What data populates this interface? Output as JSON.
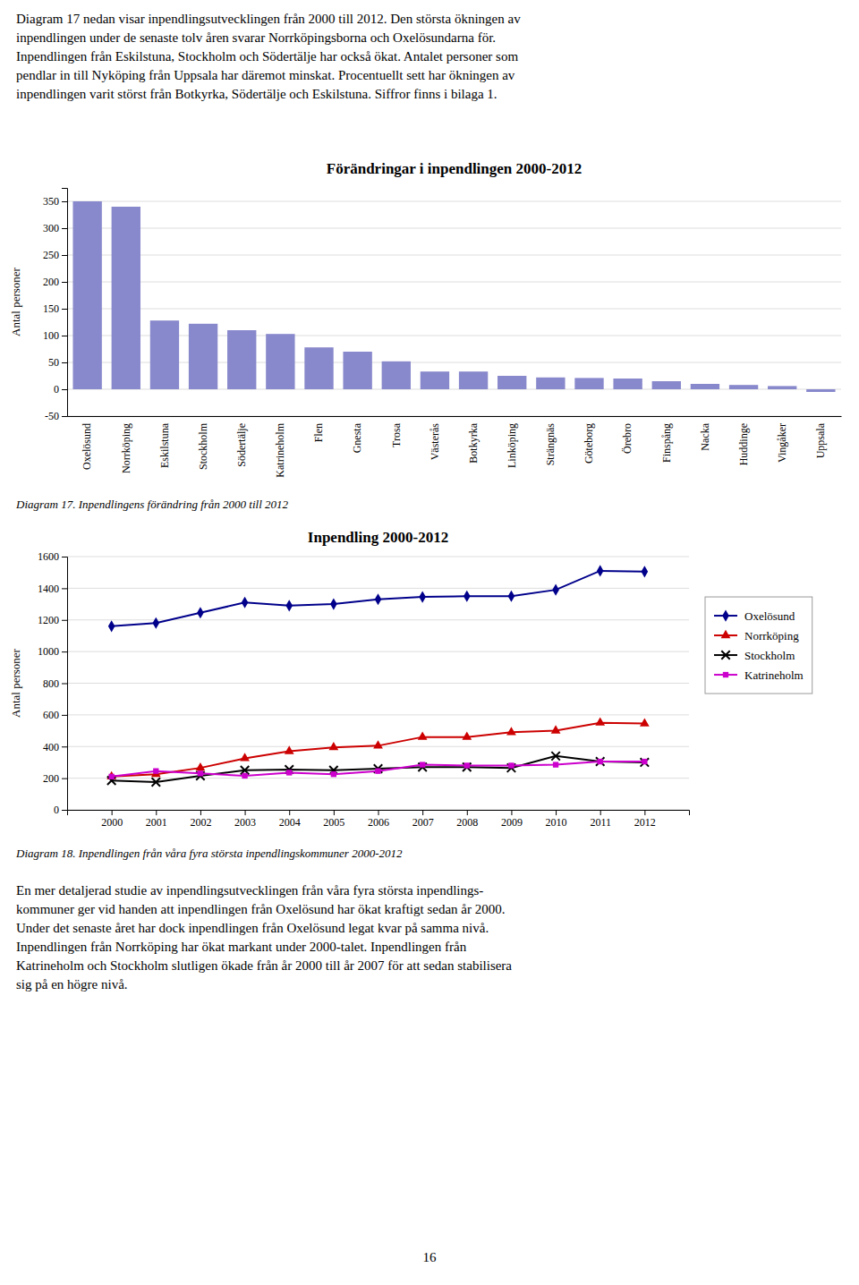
{
  "paragraph1_lines": [
    "Diagram 17 nedan visar inpendlingsutvecklingen från 2000 till 2012. Den största ökningen av",
    "inpendlingen under de senaste tolv åren svarar Norrköpingsborna och Oxelösundarna för.",
    "Inpendlingen från Eskilstuna, Stockholm och Södertälje har också ökat. Antalet personer som",
    "pendlar in till Nyköping från Uppsala har däremot minskat. Procentuellt sett har ökningen av",
    "inpendlingen varit störst från Botkyrka, Södertälje och Eskilstuna. Siffror finns i bilaga 1."
  ],
  "chart_data": [
    {
      "type": "bar",
      "title": "Förändringar i inpendlingen 2000-2012",
      "ylabel": "Antal personer",
      "categories": [
        "Oxelösund",
        "Norrköping",
        "Eskilstuna",
        "Stockholm",
        "Södertälje",
        "Katrineholm",
        "Flen",
        "Gnesta",
        "Trosa",
        "Västerås",
        "Botkyrka",
        "Linköping",
        "Strängnäs",
        "Göteborg",
        "Örebro",
        "Finspång",
        "Nacka",
        "Huddinge",
        "Vingåker",
        "Uppsala"
      ],
      "values": [
        350,
        340,
        128,
        122,
        110,
        103,
        78,
        70,
        52,
        33,
        33,
        25,
        22,
        21,
        20,
        15,
        10,
        8,
        6,
        -5
      ],
      "color": "#8888cc",
      "ylim": [
        -50,
        375
      ],
      "yticks": [
        -50,
        0,
        50,
        100,
        150,
        200,
        250,
        300,
        350
      ],
      "grid": true,
      "caption": "Diagram 17. Inpendlingens förändring från 2000 till 2012"
    },
    {
      "type": "line",
      "title": "Inpendling 2000-2012",
      "ylabel": "Antal personer",
      "x": [
        2000,
        2001,
        2002,
        2003,
        2004,
        2005,
        2006,
        2007,
        2008,
        2009,
        2010,
        2011,
        2012
      ],
      "xlim": [
        1999,
        2013
      ],
      "xticks": [
        2000,
        2001,
        2002,
        2003,
        2004,
        2005,
        2006,
        2007,
        2008,
        2009,
        2010,
        2011,
        2012
      ],
      "series": [
        {
          "name": "Oxelösund",
          "color": "#00008B",
          "marker": "diamond",
          "values": [
            1160,
            1180,
            1245,
            1310,
            1290,
            1300,
            1330,
            1345,
            1350,
            1350,
            1390,
            1510,
            1505
          ]
        },
        {
          "name": "Norrköping",
          "color": "#CC0000",
          "marker": "triangle",
          "values": [
            210,
            225,
            265,
            325,
            370,
            395,
            405,
            460,
            460,
            490,
            500,
            550,
            545
          ]
        },
        {
          "name": "Stockholm",
          "color": "#000000",
          "marker": "x",
          "values": [
            185,
            175,
            215,
            250,
            255,
            250,
            260,
            270,
            270,
            265,
            340,
            305,
            300
          ]
        },
        {
          "name": "Katrineholm",
          "color": "#CC00CC",
          "marker": "square",
          "values": [
            210,
            245,
            230,
            215,
            235,
            225,
            245,
            285,
            280,
            280,
            285,
            305,
            305
          ]
        }
      ],
      "ylim": [
        0,
        1600
      ],
      "yticks": [
        0,
        200,
        400,
        600,
        800,
        1000,
        1200,
        1400,
        1600
      ],
      "grid": true,
      "legend": "right",
      "caption": "Diagram 18. Inpendlingen från våra fyra största inpendlingskommuner 2000-2012"
    }
  ],
  "paragraph2_lines": [
    "En mer detaljerad studie av inpendlingsutvecklingen från våra fyra största inpendlings-",
    "kommuner ger vid handen att inpendlingen från Oxelösund har ökat kraftigt sedan år 2000.",
    "Under det senaste året har dock inpendlingen från Oxelösund legat kvar på samma nivå.",
    "Inpendlingen från Norrköping har ökat markant under 2000-talet. Inpendlingen från",
    "Katrineholm och Stockholm slutligen ökade från år 2000 till år 2007 för att sedan stabilisera",
    "sig på en högre nivå."
  ],
  "page_number": "16"
}
